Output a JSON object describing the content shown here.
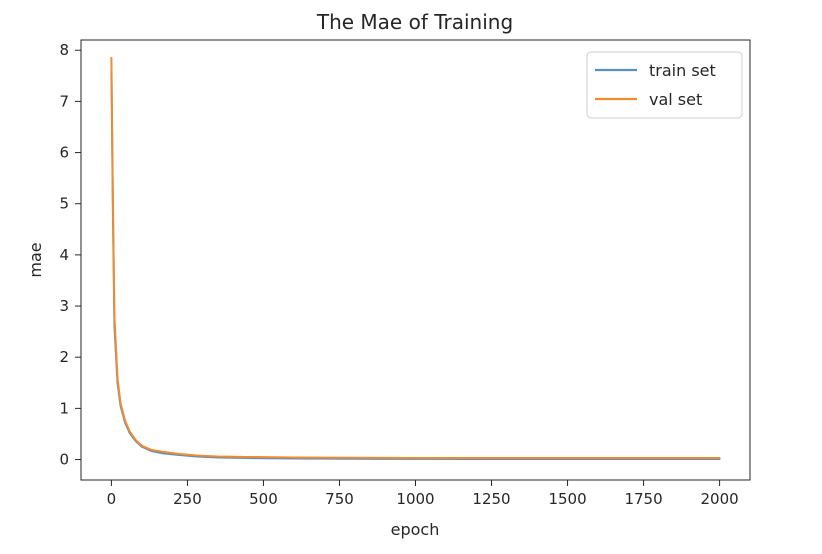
{
  "chart_data": {
    "type": "line",
    "title": "The Mae of Training",
    "xlabel": "epoch",
    "ylabel": "mae",
    "xlim": [
      -100,
      2100
    ],
    "ylim": [
      -0.4,
      8.2
    ],
    "xticks": [
      0,
      250,
      500,
      750,
      1000,
      1250,
      1500,
      1750,
      2000
    ],
    "yticks": [
      0,
      1,
      2,
      3,
      4,
      5,
      6,
      7,
      8
    ],
    "grid": false,
    "legend_position": "top-right",
    "x": [
      0,
      5,
      10,
      20,
      30,
      45,
      60,
      80,
      100,
      130,
      170,
      220,
      280,
      350,
      450,
      600,
      800,
      1000,
      1250,
      1500,
      1750,
      2000
    ],
    "series": [
      {
        "name": "train set",
        "color": "#5a8ec8",
        "values": [
          7.6,
          4.8,
          2.6,
          1.5,
          1.05,
          0.72,
          0.52,
          0.36,
          0.25,
          0.17,
          0.12,
          0.09,
          0.06,
          0.04,
          0.03,
          0.02,
          0.015,
          0.012,
          0.01,
          0.01,
          0.01,
          0.01
        ]
      },
      {
        "name": "val set",
        "color": "#f08c2e",
        "values": [
          7.85,
          5.0,
          2.8,
          1.6,
          1.1,
          0.76,
          0.55,
          0.38,
          0.27,
          0.19,
          0.15,
          0.11,
          0.08,
          0.06,
          0.05,
          0.04,
          0.035,
          0.03,
          0.03,
          0.03,
          0.03,
          0.03
        ]
      }
    ]
  }
}
